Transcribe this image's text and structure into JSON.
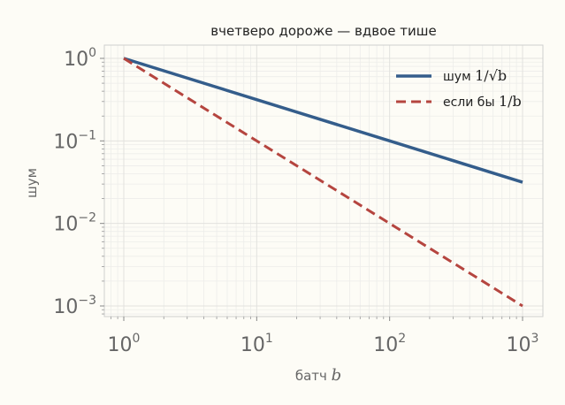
{
  "chart_data": {
    "type": "line",
    "title": "вчетверо дороже — вдвое тише",
    "xlabel": "батч",
    "xlabel_var": "b",
    "ylabel": "шум",
    "xscale": "log",
    "yscale": "log",
    "xlim": [
      1,
      1000
    ],
    "ylim": [
      0.001,
      1
    ],
    "grid": true,
    "legend_position": "top-right",
    "x_ticks": [
      {
        "base": "10",
        "exp": "0"
      },
      {
        "base": "10",
        "exp": "1"
      },
      {
        "base": "10",
        "exp": "2"
      },
      {
        "base": "10",
        "exp": "3"
      }
    ],
    "y_ticks": [
      {
        "base": "10",
        "exp": "0"
      },
      {
        "base": "10",
        "exp": "−1"
      },
      {
        "base": "10",
        "exp": "−2"
      },
      {
        "base": "10",
        "exp": "−3"
      }
    ],
    "series": [
      {
        "name": "шум 1/√b",
        "legend_text": "шум",
        "legend_math": "1/√b",
        "color": "#345d8b",
        "style": "solid",
        "x": [
          1,
          10,
          100,
          1000
        ],
        "y": [
          1,
          0.316,
          0.1,
          0.0316
        ]
      },
      {
        "name": "если бы 1/b",
        "legend_text": "если бы",
        "legend_math": "1/b",
        "color": "#b5453f",
        "style": "dashed",
        "x": [
          1,
          10,
          100,
          1000
        ],
        "y": [
          1,
          0.1,
          0.01,
          0.001
        ]
      }
    ]
  }
}
